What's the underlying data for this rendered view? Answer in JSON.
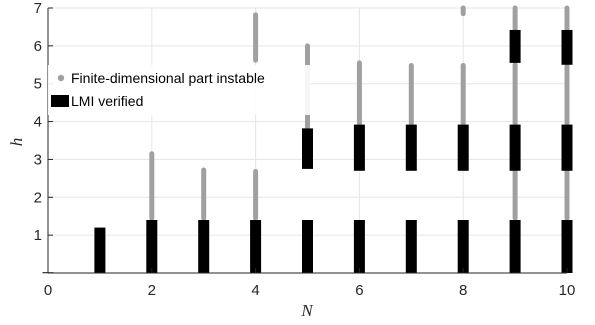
{
  "chart_data": {
    "type": "scatter",
    "xlabel": "N",
    "ylabel": "h",
    "xlim": [
      0,
      10
    ],
    "ylim": [
      0,
      7
    ],
    "xticks": [
      "0",
      "2",
      "4",
      "6",
      "8",
      "10"
    ],
    "yticks": [
      "1",
      "2",
      "3",
      "4",
      "5",
      "6",
      "7"
    ],
    "grid": true,
    "legend_position": "upper-left",
    "colors": {
      "instable": "#a0a0a0",
      "lmi": "#000000",
      "grid": "#e6e6e6",
      "axes": "#262626"
    },
    "series": [
      {
        "name": "Finite-dimensional part instable",
        "marker": "point",
        "intervals": [
          {
            "x": 2,
            "y_range": [
              1.45,
              3.15
            ]
          },
          {
            "x": 3,
            "y_range": [
              1.45,
              2.72
            ]
          },
          {
            "x": 4,
            "y_range": [
              1.45,
              2.68
            ]
          },
          {
            "x": 4,
            "y_range": [
              5.62,
              6.82
            ]
          },
          {
            "x": 5,
            "y_range": [
              3.85,
              6.0
            ]
          },
          {
            "x": 6,
            "y_range": [
              3.95,
              5.55
            ]
          },
          {
            "x": 7,
            "y_range": [
              3.95,
              5.48
            ]
          },
          {
            "x": 8,
            "y_range": [
              3.95,
              5.48
            ]
          },
          {
            "x": 8,
            "y_range": [
              6.85,
              7.0
            ]
          },
          {
            "x": 9,
            "y_range": [
              1.45,
              2.68
            ]
          },
          {
            "x": 9,
            "y_range": [
              3.95,
              5.5
            ]
          },
          {
            "x": 9,
            "y_range": [
              6.45,
              7.0
            ]
          },
          {
            "x": 10,
            "y_range": [
              1.45,
              2.68
            ]
          },
          {
            "x": 10,
            "y_range": [
              3.95,
              5.48
            ]
          },
          {
            "x": 10,
            "y_range": [
              6.45,
              7.0
            ]
          }
        ]
      },
      {
        "name": "LMI verified",
        "marker": "bar",
        "intervals": [
          {
            "x": 0,
            "y_range": [
              0.0,
              0.02
            ]
          },
          {
            "x": 1,
            "y_range": [
              0.0,
              1.2
            ]
          },
          {
            "x": 2,
            "y_range": [
              0.0,
              1.4
            ]
          },
          {
            "x": 3,
            "y_range": [
              0.0,
              1.4
            ]
          },
          {
            "x": 4,
            "y_range": [
              0.0,
              1.4
            ]
          },
          {
            "x": 5,
            "y_range": [
              0.0,
              1.4
            ]
          },
          {
            "x": 5,
            "y_range": [
              2.75,
              3.82
            ]
          },
          {
            "x": 6,
            "y_range": [
              0.0,
              1.4
            ]
          },
          {
            "x": 6,
            "y_range": [
              2.7,
              3.92
            ]
          },
          {
            "x": 7,
            "y_range": [
              0.0,
              1.4
            ]
          },
          {
            "x": 7,
            "y_range": [
              2.7,
              3.92
            ]
          },
          {
            "x": 8,
            "y_range": [
              0.0,
              1.4
            ]
          },
          {
            "x": 8,
            "y_range": [
              2.7,
              3.92
            ]
          },
          {
            "x": 9,
            "y_range": [
              0.0,
              1.4
            ]
          },
          {
            "x": 9,
            "y_range": [
              2.7,
              3.92
            ]
          },
          {
            "x": 9,
            "y_range": [
              5.55,
              6.42
            ]
          },
          {
            "x": 10,
            "y_range": [
              0.0,
              1.4
            ]
          },
          {
            "x": 10,
            "y_range": [
              2.7,
              3.92
            ]
          },
          {
            "x": 10,
            "y_range": [
              5.5,
              6.42
            ]
          }
        ]
      }
    ]
  }
}
